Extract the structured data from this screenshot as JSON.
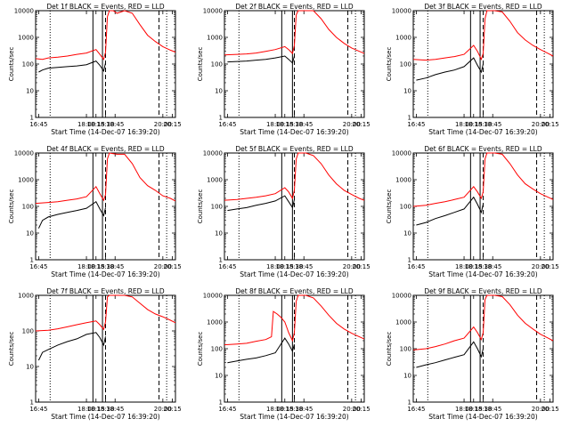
{
  "figure": {
    "background": "#ffffff",
    "colors": {
      "events": "#000000",
      "lld": "#ff0000",
      "axes": "#000000"
    }
  },
  "chart_data": [
    {
      "type": "line",
      "title": "Det 1f BLACK = Events, RED = LLD",
      "xlabel": "Start Time (14-Dec-07 16:39:20)",
      "ylabel": "Counts/sec",
      "yscale": "log",
      "ylim": [
        1,
        10000
      ],
      "xlim": [
        16.67,
        20.33
      ],
      "x_ticks": [
        "16:45",
        "18:00",
        "18:15",
        "18:30",
        "18:45",
        "20:00",
        "20:15"
      ],
      "y_ticks": [
        "1",
        "10",
        "100",
        "1000",
        "10000"
      ],
      "vlines_solid": [
        18.17,
        18.42
      ],
      "vlines_dotted": [
        17.05,
        20.1
      ],
      "vlines_dashed": [
        18.5,
        19.9
      ],
      "series": [
        {
          "name": "Events",
          "color": "#000000",
          "x": [
            16.75,
            16.85,
            17.0,
            17.25,
            17.5,
            17.75,
            18.0,
            18.25,
            18.35,
            18.45,
            18.5
          ],
          "y": [
            50,
            60,
            70,
            75,
            80,
            85,
            95,
            130,
            90,
            55,
            110
          ]
        },
        {
          "name": "LLD",
          "color": "#ff0000",
          "x": [
            16.67,
            16.85,
            17.0,
            17.25,
            17.5,
            17.75,
            18.0,
            18.25,
            18.35,
            18.45,
            18.5,
            18.55,
            18.6,
            18.7,
            18.8,
            19.0,
            19.2,
            19.4,
            19.6,
            19.8,
            20.0,
            20.2,
            20.33
          ],
          "y": [
            160,
            150,
            170,
            180,
            200,
            230,
            260,
            350,
            230,
            150,
            280,
            6000,
            10000,
            10000,
            8000,
            10000,
            8000,
            3000,
            1200,
            700,
            450,
            330,
            280
          ]
        }
      ]
    },
    {
      "type": "line",
      "title": "Det 2f BLACK = Events, RED = LLD",
      "xlabel": "Start Time (14-Dec-07 16:39:20)",
      "ylabel": "Counts/sec",
      "yscale": "log",
      "ylim": [
        1,
        10000
      ],
      "xlim": [
        16.67,
        20.33
      ],
      "x_ticks": [
        "16:45",
        "18:00",
        "18:15",
        "18:30",
        "18:45",
        "20:00",
        "20:15"
      ],
      "y_ticks": [
        "1",
        "10",
        "100",
        "1000",
        "10000"
      ],
      "vlines_solid": [
        18.17,
        18.45
      ],
      "vlines_dotted": [
        17.05,
        20.1
      ],
      "vlines_dashed": [
        18.5,
        19.9
      ],
      "series": [
        {
          "name": "Events",
          "color": "#000000",
          "x": [
            16.75,
            17.0,
            17.25,
            17.5,
            17.75,
            18.0,
            18.25,
            18.35,
            18.45,
            18.5
          ],
          "y": [
            120,
            125,
            130,
            140,
            150,
            170,
            200,
            150,
            110,
            200
          ]
        },
        {
          "name": "LLD",
          "color": "#ff0000",
          "x": [
            16.67,
            17.0,
            17.25,
            17.5,
            17.75,
            18.0,
            18.25,
            18.35,
            18.45,
            18.5,
            18.55,
            18.6,
            18.8,
            19.0,
            19.2,
            19.4,
            19.6,
            19.8,
            20.0,
            20.2,
            20.33
          ],
          "y": [
            220,
            230,
            240,
            260,
            300,
            350,
            450,
            350,
            250,
            500,
            7000,
            10000,
            10000,
            10000,
            5000,
            2000,
            1000,
            600,
            400,
            300,
            250
          ]
        }
      ]
    },
    {
      "type": "line",
      "title": "Det 3f BLACK = Events, RED = LLD",
      "xlabel": "Start Time (14-Dec-07 16:39:20)",
      "ylabel": "Counts/sec",
      "yscale": "log",
      "ylim": [
        1,
        10000
      ],
      "xlim": [
        16.67,
        20.33
      ],
      "x_ticks": [
        "16:45",
        "18:00",
        "18:15",
        "18:30",
        "18:45",
        "20:00",
        "20:15"
      ],
      "y_ticks": [
        "1",
        "10",
        "100",
        "1000",
        "10000"
      ],
      "vlines_solid": [
        18.17,
        18.42
      ],
      "vlines_dotted": [
        17.05,
        20.1
      ],
      "vlines_dashed": [
        18.5,
        19.9
      ],
      "series": [
        {
          "name": "Events",
          "color": "#000000",
          "x": [
            16.75,
            17.0,
            17.25,
            17.5,
            17.75,
            18.0,
            18.25,
            18.35,
            18.45,
            18.5
          ],
          "y": [
            25,
            30,
            40,
            50,
            60,
            80,
            170,
            90,
            50,
            100
          ]
        },
        {
          "name": "LLD",
          "color": "#ff0000",
          "x": [
            16.67,
            17.0,
            17.25,
            17.5,
            17.75,
            18.0,
            18.25,
            18.35,
            18.45,
            18.5,
            18.55,
            18.6,
            18.8,
            19.0,
            19.2,
            19.4,
            19.6,
            19.8,
            20.0,
            20.2,
            20.33
          ],
          "y": [
            150,
            140,
            150,
            170,
            190,
            230,
            500,
            300,
            150,
            250,
            5000,
            10000,
            10000,
            9000,
            4000,
            1500,
            800,
            500,
            350,
            250,
            200
          ]
        }
      ]
    },
    {
      "type": "line",
      "title": "Det 4f BLACK = Events, RED = LLD",
      "xlabel": "Start Time (14-Dec-07 16:39:20)",
      "ylabel": "Counts/sec",
      "yscale": "log",
      "ylim": [
        1,
        10000
      ],
      "xlim": [
        16.67,
        20.33
      ],
      "x_ticks": [
        "16:45",
        "18:00",
        "18:15",
        "18:30",
        "18:45",
        "20:00",
        "20:15"
      ],
      "y_ticks": [
        "1",
        "10",
        "100",
        "1000",
        "10000"
      ],
      "vlines_solid": [
        18.17,
        18.42
      ],
      "vlines_dotted": [
        17.05,
        20.1
      ],
      "vlines_dashed": [
        18.5,
        19.9
      ],
      "series": [
        {
          "name": "Events",
          "color": "#000000",
          "x": [
            16.75,
            16.85,
            17.0,
            17.25,
            17.5,
            17.75,
            18.0,
            18.25,
            18.35,
            18.45,
            18.5
          ],
          "y": [
            15,
            30,
            40,
            50,
            60,
            70,
            85,
            150,
            80,
            45,
            90
          ]
        },
        {
          "name": "LLD",
          "color": "#ff0000",
          "x": [
            16.67,
            17.0,
            17.25,
            17.5,
            17.75,
            18.0,
            18.25,
            18.35,
            18.45,
            18.5,
            18.55,
            18.6,
            18.8,
            19.0,
            19.2,
            19.4,
            19.6,
            19.8,
            20.0,
            20.2,
            20.33
          ],
          "y": [
            130,
            140,
            150,
            170,
            190,
            230,
            550,
            300,
            170,
            280,
            6000,
            10000,
            9000,
            9000,
            4000,
            1200,
            600,
            400,
            250,
            200,
            160
          ]
        }
      ]
    },
    {
      "type": "line",
      "title": "Det 5f BLACK = Events, RED = LLD",
      "xlabel": "Start Time (14-Dec-07 16:39:20)",
      "ylabel": "Counts/sec",
      "yscale": "log",
      "ylim": [
        1,
        10000
      ],
      "xlim": [
        16.67,
        20.33
      ],
      "x_ticks": [
        "16:45",
        "18:00",
        "18:15",
        "18:30",
        "18:45",
        "20:00",
        "20:15"
      ],
      "y_ticks": [
        "1",
        "10",
        "100",
        "1000",
        "10000"
      ],
      "vlines_solid": [
        18.17,
        18.45
      ],
      "vlines_dotted": [
        17.05,
        20.1
      ],
      "vlines_dashed": [
        18.5,
        19.9
      ],
      "series": [
        {
          "name": "Events",
          "color": "#000000",
          "x": [
            16.75,
            17.0,
            17.25,
            17.5,
            17.75,
            18.0,
            18.25,
            18.35,
            18.45,
            18.5
          ],
          "y": [
            70,
            80,
            90,
            110,
            130,
            160,
            250,
            150,
            90,
            180
          ]
        },
        {
          "name": "LLD",
          "color": "#ff0000",
          "x": [
            16.67,
            17.0,
            17.25,
            17.5,
            17.75,
            18.0,
            18.25,
            18.35,
            18.45,
            18.5,
            18.55,
            18.6,
            18.8,
            19.0,
            19.2,
            19.4,
            19.6,
            19.8,
            20.0,
            20.2,
            20.33
          ],
          "y": [
            170,
            180,
            200,
            220,
            250,
            300,
            500,
            350,
            200,
            400,
            6000,
            10000,
            10000,
            8000,
            4000,
            1500,
            700,
            400,
            280,
            200,
            170
          ]
        }
      ]
    },
    {
      "type": "line",
      "title": "Det 6f BLACK = Events, RED = LLD",
      "xlabel": "Start Time (14-Dec-07 16:39:20)",
      "ylabel": "Counts/sec",
      "yscale": "log",
      "ylim": [
        1,
        10000
      ],
      "xlim": [
        16.67,
        20.33
      ],
      "x_ticks": [
        "16:45",
        "18:00",
        "18:15",
        "18:30",
        "18:45",
        "20:00",
        "20:15"
      ],
      "y_ticks": [
        "1",
        "10",
        "100",
        "1000",
        "10000"
      ],
      "vlines_solid": [
        18.17,
        18.42
      ],
      "vlines_dotted": [
        17.05,
        20.1
      ],
      "vlines_dashed": [
        18.5,
        19.9
      ],
      "series": [
        {
          "name": "Events",
          "color": "#000000",
          "x": [
            16.75,
            17.0,
            17.25,
            17.5,
            17.75,
            18.0,
            18.25,
            18.35,
            18.45,
            18.5
          ],
          "y": [
            20,
            25,
            35,
            45,
            60,
            80,
            220,
            120,
            60,
            120
          ]
        },
        {
          "name": "LLD",
          "color": "#ff0000",
          "x": [
            16.67,
            17.0,
            17.25,
            17.5,
            17.75,
            18.0,
            18.25,
            18.35,
            18.45,
            18.5,
            18.55,
            18.6,
            18.8,
            19.0,
            19.2,
            19.4,
            19.6,
            19.8,
            20.0,
            20.2,
            20.33
          ],
          "y": [
            100,
            110,
            130,
            150,
            180,
            220,
            550,
            350,
            200,
            350,
            6000,
            10000,
            10000,
            9000,
            4000,
            1500,
            700,
            450,
            300,
            220,
            180
          ]
        }
      ]
    },
    {
      "type": "line",
      "title": "Det 7f BLACK = Events, RED = LLD",
      "xlabel": "Start Time (14-Dec-07 16:39:20)",
      "ylabel": "Counts/sec",
      "yscale": "log",
      "ylim": [
        1,
        1000
      ],
      "xlim": [
        16.67,
        20.33
      ],
      "x_ticks": [
        "16:45",
        "18:00",
        "18:15",
        "18:30",
        "18:45",
        "20:00",
        "20:15"
      ],
      "y_ticks": [
        "1",
        "10",
        "100",
        "1000"
      ],
      "vlines_solid": [
        18.17,
        18.42
      ],
      "vlines_dotted": [
        17.05,
        20.1
      ],
      "vlines_dashed": [
        18.5,
        19.9
      ],
      "series": [
        {
          "name": "Events",
          "color": "#000000",
          "x": [
            16.75,
            16.85,
            17.0,
            17.25,
            17.5,
            17.75,
            18.0,
            18.25,
            18.35,
            18.45,
            18.5
          ],
          "y": [
            15,
            25,
            30,
            40,
            50,
            60,
            80,
            90,
            65,
            40,
            70
          ]
        },
        {
          "name": "LLD",
          "color": "#ff0000",
          "x": [
            16.67,
            17.0,
            17.25,
            17.5,
            17.75,
            18.0,
            18.25,
            18.35,
            18.45,
            18.5,
            18.55,
            18.6,
            18.8,
            19.0,
            19.2,
            19.4,
            19.6,
            19.8,
            20.0,
            20.2,
            20.33
          ],
          "y": [
            100,
            105,
            115,
            130,
            150,
            170,
            190,
            150,
            110,
            180,
            900,
            1000,
            1000,
            1000,
            900,
            600,
            400,
            300,
            250,
            200,
            170
          ]
        }
      ]
    },
    {
      "type": "line",
      "title": "Det 8f BLACK = Events, RED = LLD",
      "xlabel": "Start Time (14-Dec-07 16:39:20)",
      "ylabel": "Counts/sec",
      "yscale": "log",
      "ylim": [
        1,
        10000
      ],
      "xlim": [
        16.67,
        20.33
      ],
      "x_ticks": [
        "16:45",
        "18:00",
        "18:15",
        "18:30",
        "18:45",
        "20:00",
        "20:15"
      ],
      "y_ticks": [
        "1",
        "10",
        "100",
        "1000",
        "10000"
      ],
      "vlines_solid": [
        18.17,
        18.45
      ],
      "vlines_dotted": [
        17.05,
        20.1
      ],
      "vlines_dashed": [
        18.5,
        19.9
      ],
      "series": [
        {
          "name": "Events",
          "color": "#000000",
          "x": [
            16.75,
            17.0,
            17.25,
            17.5,
            17.75,
            18.0,
            18.25,
            18.35,
            18.45,
            18.5
          ],
          "y": [
            30,
            35,
            40,
            45,
            55,
            70,
            250,
            150,
            80,
            150
          ]
        },
        {
          "name": "LLD",
          "color": "#ff0000",
          "x": [
            16.67,
            17.0,
            17.25,
            17.5,
            17.75,
            17.9,
            17.95,
            18.05,
            18.15,
            18.25,
            18.35,
            18.45,
            18.5,
            18.55,
            18.6,
            18.8,
            19.0,
            19.2,
            19.4,
            19.6,
            19.8,
            20.0,
            20.2,
            20.33
          ],
          "y": [
            140,
            150,
            160,
            190,
            220,
            280,
            2500,
            2000,
            1500,
            1000,
            400,
            200,
            400,
            6000,
            10000,
            10000,
            8000,
            4000,
            1800,
            900,
            550,
            380,
            280,
            230
          ]
        }
      ]
    },
    {
      "type": "line",
      "title": "Det 9f BLACK = Events, RED = LLD",
      "xlabel": "Start Time (14-Dec-07 16:39:20)",
      "ylabel": "Counts/sec",
      "yscale": "log",
      "ylim": [
        1,
        10000
      ],
      "xlim": [
        16.67,
        20.33
      ],
      "x_ticks": [
        "16:45",
        "18:00",
        "18:15",
        "18:30",
        "18:45",
        "20:00",
        "20:15"
      ],
      "y_ticks": [
        "1",
        "10",
        "100",
        "1000",
        "10000"
      ],
      "vlines_solid": [
        18.17,
        18.42
      ],
      "vlines_dotted": [
        17.05,
        20.1
      ],
      "vlines_dashed": [
        18.5,
        19.9
      ],
      "series": [
        {
          "name": "Events",
          "color": "#000000",
          "x": [
            16.75,
            17.0,
            17.25,
            17.5,
            17.75,
            18.0,
            18.25,
            18.35,
            18.45,
            18.5
          ],
          "y": [
            20,
            25,
            30,
            38,
            48,
            60,
            180,
            100,
            50,
            100
          ]
        },
        {
          "name": "LLD",
          "color": "#ff0000",
          "x": [
            16.67,
            17.0,
            17.25,
            17.5,
            17.75,
            18.0,
            18.25,
            18.35,
            18.45,
            18.5,
            18.55,
            18.6,
            18.8,
            19.0,
            19.2,
            19.4,
            19.6,
            19.8,
            20.0,
            20.2,
            20.33
          ],
          "y": [
            90,
            100,
            120,
            150,
            200,
            250,
            650,
            400,
            220,
            400,
            7000,
            10000,
            10000,
            9000,
            4500,
            1800,
            900,
            550,
            350,
            250,
            200
          ]
        }
      ]
    }
  ]
}
